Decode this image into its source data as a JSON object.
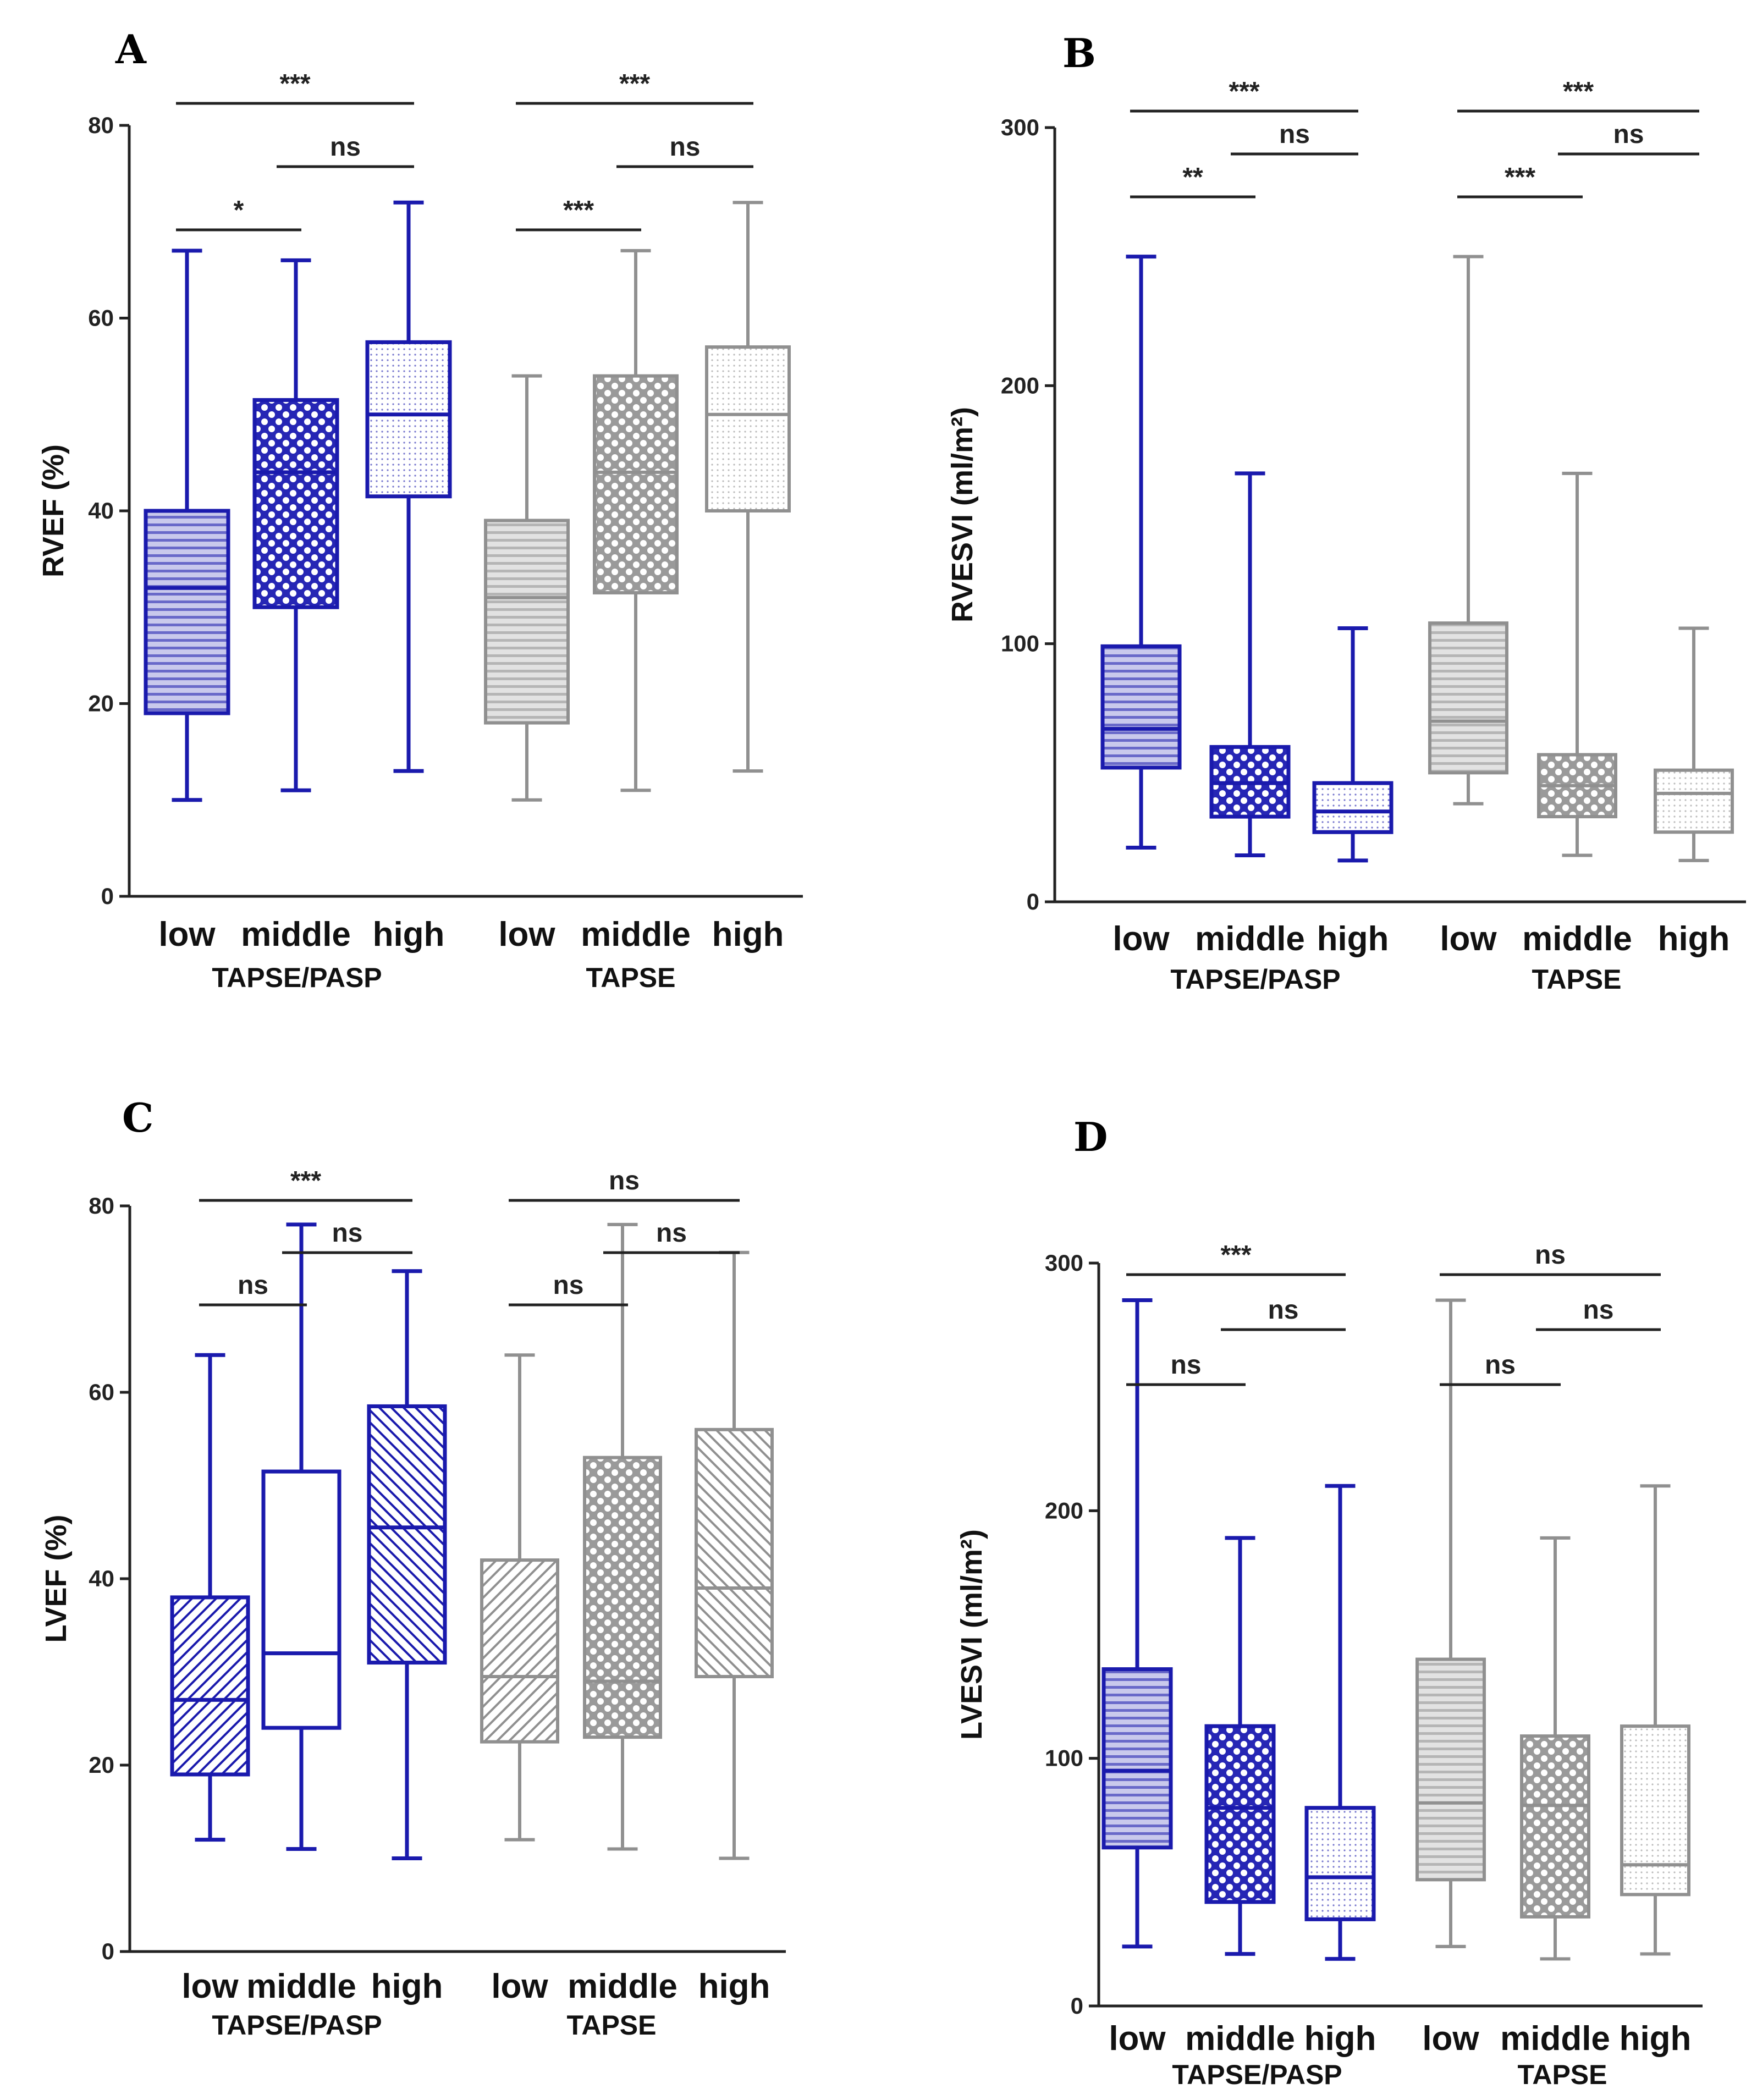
{
  "colors": {
    "blue": "#1a1aad",
    "gray": "#909090",
    "axis": "#222222"
  },
  "chart_data": [
    {
      "panel": "A",
      "type": "boxplot",
      "ylabel": "RVEF (%)",
      "ylim": [
        0,
        80
      ],
      "yticks": [
        "0",
        "20",
        "40",
        "60",
        "80"
      ],
      "groups": [
        "TAPSE/PASP",
        "TAPSE"
      ],
      "categories": [
        "low",
        "middle",
        "high"
      ],
      "boxes": [
        {
          "group": 0,
          "category": "low",
          "min": 10,
          "q1": 19,
          "median": 32,
          "q3": 40,
          "max": 67,
          "color": "blue",
          "pattern": "hstripe"
        },
        {
          "group": 0,
          "category": "middle",
          "min": 11,
          "q1": 30,
          "median": 44,
          "q3": 51.5,
          "max": 66,
          "color": "blue",
          "pattern": "check"
        },
        {
          "group": 0,
          "category": "high",
          "min": 13,
          "q1": 41.5,
          "median": 50,
          "q3": 57.5,
          "max": 72,
          "color": "blue",
          "pattern": "dots"
        },
        {
          "group": 1,
          "category": "low",
          "min": 10,
          "q1": 18,
          "median": 31,
          "q3": 39,
          "max": 54,
          "color": "gray",
          "pattern": "hstripe"
        },
        {
          "group": 1,
          "category": "middle",
          "min": 11,
          "q1": 31.5,
          "median": 44,
          "q3": 54,
          "max": 67,
          "color": "gray",
          "pattern": "check"
        },
        {
          "group": 1,
          "category": "high",
          "min": 13,
          "q1": 40,
          "median": 50,
          "q3": 57,
          "max": 72,
          "color": "gray",
          "pattern": "dots"
        }
      ],
      "significance": [
        {
          "group": 0,
          "from": 0,
          "to": 2,
          "label": "***",
          "level": 3
        },
        {
          "group": 0,
          "from": 1,
          "to": 2,
          "label": "ns",
          "level": 2
        },
        {
          "group": 0,
          "from": 0,
          "to": 1,
          "label": "*",
          "level": 1
        },
        {
          "group": 1,
          "from": 0,
          "to": 2,
          "label": "***",
          "level": 3
        },
        {
          "group": 1,
          "from": 1,
          "to": 2,
          "label": "ns",
          "level": 2
        },
        {
          "group": 1,
          "from": 0,
          "to": 1,
          "label": "***",
          "level": 1
        }
      ]
    },
    {
      "panel": "B",
      "type": "boxplot",
      "ylabel": "RVESVI (ml/m²)",
      "ylim": [
        0,
        300
      ],
      "yticks": [
        "0",
        "100",
        "200",
        "300"
      ],
      "groups": [
        "TAPSE/PASP",
        "TAPSE"
      ],
      "categories": [
        "low",
        "middle",
        "high"
      ],
      "boxes": [
        {
          "group": 0,
          "category": "low",
          "min": 21,
          "q1": 52,
          "median": 67,
          "q3": 99,
          "max": 250,
          "color": "blue",
          "pattern": "hstripe"
        },
        {
          "group": 0,
          "category": "middle",
          "min": 18,
          "q1": 33,
          "median": 46,
          "q3": 60,
          "max": 166,
          "color": "blue",
          "pattern": "check"
        },
        {
          "group": 0,
          "category": "high",
          "min": 16,
          "q1": 27,
          "median": 35,
          "q3": 46,
          "max": 106,
          "color": "blue",
          "pattern": "dots"
        },
        {
          "group": 1,
          "category": "low",
          "min": 38,
          "q1": 50,
          "median": 70,
          "q3": 108,
          "max": 250,
          "color": "gray",
          "pattern": "hstripe"
        },
        {
          "group": 1,
          "category": "middle",
          "min": 18,
          "q1": 33,
          "median": 45,
          "q3": 57,
          "max": 166,
          "color": "gray",
          "pattern": "check"
        },
        {
          "group": 1,
          "category": "high",
          "min": 16,
          "q1": 27,
          "median": 42,
          "q3": 51,
          "max": 106,
          "color": "gray",
          "pattern": "dots"
        }
      ],
      "significance": [
        {
          "group": 0,
          "from": 0,
          "to": 2,
          "label": "***",
          "level": 3
        },
        {
          "group": 0,
          "from": 1,
          "to": 2,
          "label": "ns",
          "level": 2
        },
        {
          "group": 0,
          "from": 0,
          "to": 1,
          "label": "**",
          "level": 1
        },
        {
          "group": 1,
          "from": 0,
          "to": 2,
          "label": "***",
          "level": 3
        },
        {
          "group": 1,
          "from": 1,
          "to": 2,
          "label": "ns",
          "level": 2
        },
        {
          "group": 1,
          "from": 0,
          "to": 1,
          "label": "***",
          "level": 1
        }
      ]
    },
    {
      "panel": "C",
      "type": "boxplot",
      "ylabel": "LVEF (%)",
      "ylim": [
        0,
        80
      ],
      "yticks": [
        "0",
        "20",
        "40",
        "60",
        "80"
      ],
      "groups": [
        "TAPSE/PASP",
        "TAPSE"
      ],
      "categories": [
        "low",
        "middle",
        "high"
      ],
      "boxes": [
        {
          "group": 0,
          "category": "low",
          "min": 12,
          "q1": 19,
          "median": 27,
          "q3": 38,
          "max": 64,
          "color": "blue",
          "pattern": "diag"
        },
        {
          "group": 0,
          "category": "middle",
          "min": 11,
          "q1": 24,
          "median": 32,
          "q3": 51.5,
          "max": 78,
          "color": "blue",
          "pattern": "none"
        },
        {
          "group": 0,
          "category": "high",
          "min": 10,
          "q1": 31,
          "median": 45.5,
          "q3": 58.5,
          "max": 73,
          "color": "blue",
          "pattern": "diagback"
        },
        {
          "group": 1,
          "category": "low",
          "min": 12,
          "q1": 22.5,
          "median": 29.5,
          "q3": 42,
          "max": 64,
          "color": "gray",
          "pattern": "diag"
        },
        {
          "group": 1,
          "category": "middle",
          "min": 11,
          "q1": 23,
          "median": 29,
          "q3": 53,
          "max": 78,
          "color": "gray",
          "pattern": "check"
        },
        {
          "group": 1,
          "category": "high",
          "min": 10,
          "q1": 29.5,
          "median": 39,
          "q3": 56,
          "max": 75,
          "color": "gray",
          "pattern": "diagback"
        }
      ],
      "significance": [
        {
          "group": 0,
          "from": 0,
          "to": 2,
          "label": "***",
          "level": 3
        },
        {
          "group": 0,
          "from": 1,
          "to": 2,
          "label": "ns",
          "level": 2
        },
        {
          "group": 0,
          "from": 0,
          "to": 1,
          "label": "ns",
          "level": 1
        },
        {
          "group": 1,
          "from": 0,
          "to": 2,
          "label": "ns",
          "level": 3
        },
        {
          "group": 1,
          "from": 1,
          "to": 2,
          "label": "ns",
          "level": 2
        },
        {
          "group": 1,
          "from": 0,
          "to": 1,
          "label": "ns",
          "level": 1
        }
      ]
    },
    {
      "panel": "D",
      "type": "boxplot",
      "ylabel": "LVESVI (ml/m²)",
      "ylim": [
        0,
        300
      ],
      "yticks": [
        "0",
        "100",
        "200",
        "300"
      ],
      "groups": [
        "TAPSE/PASP",
        "TAPSE"
      ],
      "categories": [
        "low",
        "middle",
        "high"
      ],
      "boxes": [
        {
          "group": 0,
          "category": "low",
          "min": 24,
          "q1": 64,
          "median": 95,
          "q3": 136,
          "max": 285,
          "color": "blue",
          "pattern": "hstripe"
        },
        {
          "group": 0,
          "category": "middle",
          "min": 21,
          "q1": 42,
          "median": 80,
          "q3": 113,
          "max": 189,
          "color": "blue",
          "pattern": "check"
        },
        {
          "group": 0,
          "category": "high",
          "min": 19,
          "q1": 35,
          "median": 52,
          "q3": 80,
          "max": 210,
          "color": "blue",
          "pattern": "dots"
        },
        {
          "group": 1,
          "category": "low",
          "min": 24,
          "q1": 51,
          "median": 82,
          "q3": 140,
          "max": 285,
          "color": "gray",
          "pattern": "hstripe"
        },
        {
          "group": 1,
          "category": "middle",
          "min": 19,
          "q1": 36,
          "median": 81,
          "q3": 109,
          "max": 189,
          "color": "gray",
          "pattern": "check"
        },
        {
          "group": 1,
          "category": "high",
          "min": 21,
          "q1": 45,
          "median": 57,
          "q3": 113,
          "max": 210,
          "color": "gray",
          "pattern": "dots"
        }
      ],
      "significance": [
        {
          "group": 0,
          "from": 0,
          "to": 2,
          "label": "***",
          "level": 3
        },
        {
          "group": 0,
          "from": 1,
          "to": 2,
          "label": "ns",
          "level": 2
        },
        {
          "group": 0,
          "from": 0,
          "to": 1,
          "label": "ns",
          "level": 1
        },
        {
          "group": 1,
          "from": 0,
          "to": 2,
          "label": "ns",
          "level": 3
        },
        {
          "group": 1,
          "from": 1,
          "to": 2,
          "label": "ns",
          "level": 2
        },
        {
          "group": 1,
          "from": 0,
          "to": 1,
          "label": "ns",
          "level": 1
        }
      ]
    }
  ]
}
